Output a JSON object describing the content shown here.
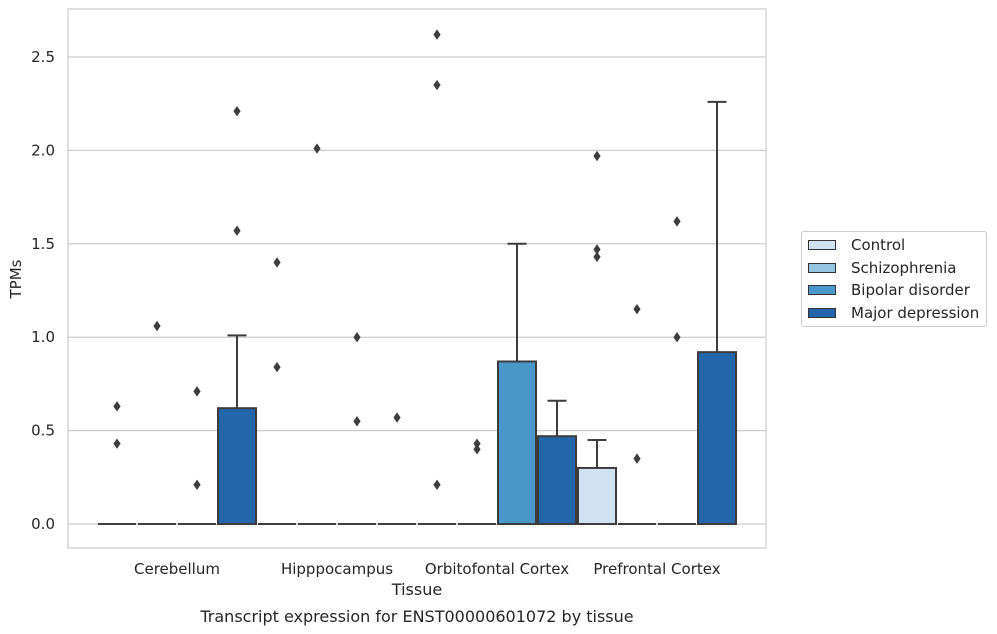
{
  "chart_data": {
    "type": "box",
    "title": "Transcript expression for ENST00000601072 by tissue",
    "xlabel": "Tissue",
    "ylabel": "TPMs",
    "ylim": [
      -0.13,
      2.75
    ],
    "yticks": [
      "0.0",
      "0.5",
      "1.0",
      "1.5",
      "2.0",
      "2.5"
    ],
    "grid": true,
    "legend_position": "right",
    "categories": [
      "Cerebellum",
      "Hipppocampus",
      "Orbitofontal Cortex",
      "Prefrontal Cortex"
    ],
    "series": [
      {
        "name": "Control",
        "color": "#d0e1f2",
        "boxes": [
          {
            "q1": 0,
            "median": 0,
            "q3": 0,
            "whisker_low": 0,
            "whisker_high": 0,
            "outliers": [
              0.43,
              0.63
            ]
          },
          {
            "q1": 0,
            "median": 0,
            "q3": 0,
            "whisker_low": 0,
            "whisker_high": 0,
            "outliers": [
              0.84,
              1.4
            ]
          },
          {
            "q1": 0,
            "median": 0,
            "q3": 0,
            "whisker_low": 0,
            "whisker_high": 0,
            "outliers": [
              0.21,
              2.35,
              2.62
            ]
          },
          {
            "q1": 0,
            "median": 0,
            "q3": 0.3,
            "whisker_low": 0,
            "whisker_high": 0.45,
            "outliers": [
              1.43,
              1.47,
              1.97
            ]
          }
        ]
      },
      {
        "name": "Schizophrenia",
        "color": "#94c4df",
        "boxes": [
          {
            "q1": 0,
            "median": 0,
            "q3": 0,
            "whisker_low": 0,
            "whisker_high": 0,
            "outliers": [
              1.06
            ]
          },
          {
            "q1": 0,
            "median": 0,
            "q3": 0,
            "whisker_low": 0,
            "whisker_high": 0,
            "outliers": [
              2.01
            ]
          },
          {
            "q1": 0,
            "median": 0,
            "q3": 0,
            "whisker_low": 0,
            "whisker_high": 0,
            "outliers": [
              0.4,
              0.43
            ]
          },
          {
            "q1": 0,
            "median": 0,
            "q3": 0,
            "whisker_low": 0,
            "whisker_high": 0,
            "outliers": [
              0.35,
              1.15
            ]
          }
        ]
      },
      {
        "name": "Bipolar disorder",
        "color": "#4a98c9",
        "boxes": [
          {
            "q1": 0,
            "median": 0,
            "q3": 0,
            "whisker_low": 0,
            "whisker_high": 0,
            "outliers": [
              0.21,
              0.71
            ]
          },
          {
            "q1": 0,
            "median": 0,
            "q3": 0,
            "whisker_low": 0,
            "whisker_high": 0,
            "outliers": [
              0.55,
              1.0
            ]
          },
          {
            "q1": 0,
            "median": 0,
            "q3": 0.87,
            "whisker_low": 0,
            "whisker_high": 1.5,
            "outliers": []
          },
          {
            "q1": 0,
            "median": 0,
            "q3": 0,
            "whisker_low": 0,
            "whisker_high": 0,
            "outliers": [
              1.0,
              1.62
            ]
          }
        ]
      },
      {
        "name": "Major depression",
        "color": "#2266a9",
        "boxes": [
          {
            "q1": 0,
            "median": 0,
            "q3": 0.62,
            "whisker_low": 0,
            "whisker_high": 1.01,
            "outliers": [
              1.57,
              2.21
            ]
          },
          {
            "q1": 0,
            "median": 0,
            "q3": 0,
            "whisker_low": 0,
            "whisker_high": 0,
            "outliers": [
              0.57
            ]
          },
          {
            "q1": 0,
            "median": 0,
            "q3": 0.47,
            "whisker_low": 0,
            "whisker_high": 0.66,
            "outliers": []
          },
          {
            "q1": 0,
            "median": 0,
            "q3": 0.92,
            "whisker_low": 0,
            "whisker_high": 2.26,
            "outliers": []
          }
        ]
      }
    ]
  }
}
